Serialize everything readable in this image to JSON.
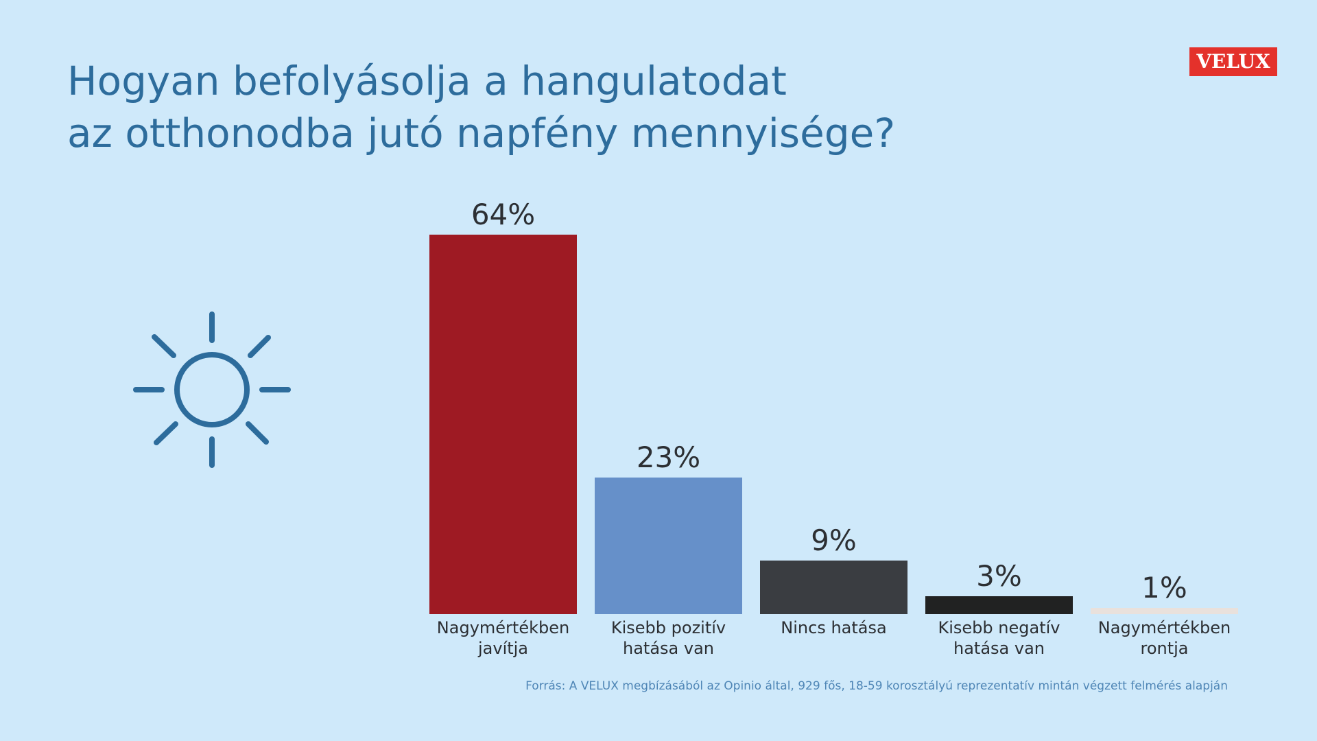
{
  "chart_data": {
    "type": "bar",
    "title": [
      "Hogyan befolyásolja a hangulatodat",
      "az otthonodba jutó napfény mennyisége?"
    ],
    "categories": [
      "Nagymértékben javítja",
      "Kisebb pozitív hatása van",
      "Nincs hatása",
      "Kisebb negatív hatása van",
      "Nagymértékben rontja"
    ],
    "values": [
      64,
      23,
      9,
      3,
      1
    ],
    "value_labels": [
      "64%",
      "23%",
      "9%",
      "3%",
      "1%"
    ],
    "colors": [
      "#9e1a23",
      "#6690c9",
      "#3a3d41",
      "#212222",
      "#e9e1dc"
    ],
    "source": "Forrás: A VELUX megbízásából az Opinio által, 929 fős, 18-59 korosztályú reprezentatív mintán végzett felmérés alapján",
    "logo": "VELUX"
  }
}
